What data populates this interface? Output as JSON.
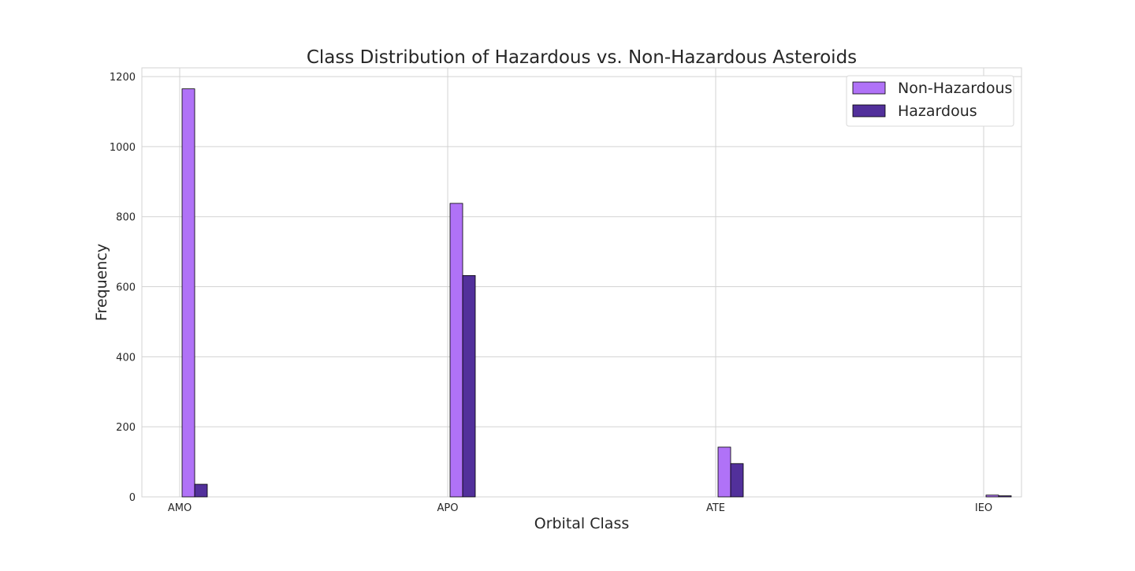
{
  "chart_data": {
    "type": "bar",
    "title": "Class Distribution of Hazardous vs. Non-Hazardous Asteroids",
    "xlabel": "Orbital Class",
    "ylabel": "Frequency",
    "categories": [
      "AMO",
      "APO",
      "ATE",
      "IEO"
    ],
    "series": [
      {
        "name": "Non-Hazardous",
        "color": "#b072f7",
        "values": [
          1165,
          838,
          142,
          5
        ]
      },
      {
        "name": "Hazardous",
        "color": "#52309b",
        "values": [
          36,
          632,
          95,
          3
        ]
      }
    ],
    "ylim": [
      0,
      1225
    ],
    "yticks": [
      0,
      200,
      400,
      600,
      800,
      1000,
      1200
    ],
    "grid": true,
    "legend_position": "top-right"
  }
}
